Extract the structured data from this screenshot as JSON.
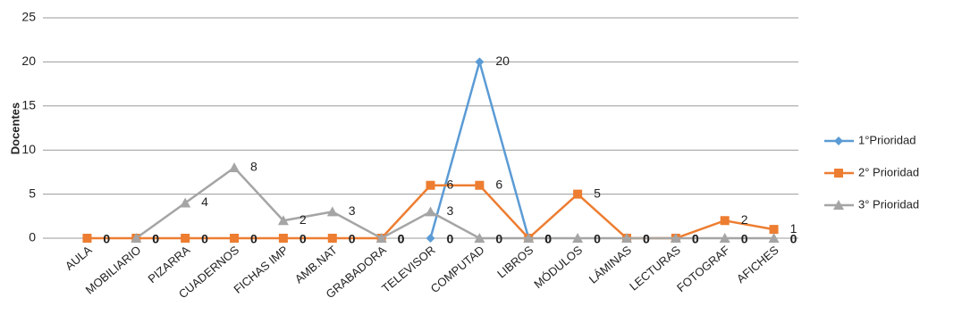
{
  "chart_data": {
    "type": "line",
    "y_label": "Docentes",
    "categories": [
      "AULA",
      "MOBILIARIO",
      "PIZARRA",
      "CUADERNOS",
      "FICHAS IMP",
      "AMB.NAT",
      "GRABADORA",
      "TELEVISOR",
      "COMPUTAD",
      "LIBROS",
      "MÓDULOS",
      "LÁMINAS",
      "LECTURAS",
      "FOTOGRAF",
      "AFICHES"
    ],
    "series": [
      {
        "name": "1°Prioridad",
        "color": "#5b9bd5",
        "marker": "diamond",
        "values": [
          null,
          null,
          null,
          null,
          null,
          null,
          null,
          0,
          20,
          0,
          null,
          null,
          null,
          null,
          null
        ]
      },
      {
        "name": "2° Prioridad",
        "color": "#ed7d31",
        "marker": "square",
        "values": [
          0,
          0,
          0,
          0,
          0,
          0,
          0,
          6,
          6,
          0,
          5,
          0,
          0,
          2,
          1
        ]
      },
      {
        "name": "3° Prioridad",
        "color": "#a5a5a5",
        "marker": "triangle",
        "values": [
          null,
          0,
          4,
          8,
          2,
          3,
          0,
          3,
          0,
          0,
          0,
          0,
          0,
          0,
          0
        ]
      }
    ],
    "ylim": [
      0,
      25
    ],
    "yticks": [
      0,
      5,
      10,
      15,
      20,
      25
    ],
    "grid": true,
    "legend": "right"
  }
}
